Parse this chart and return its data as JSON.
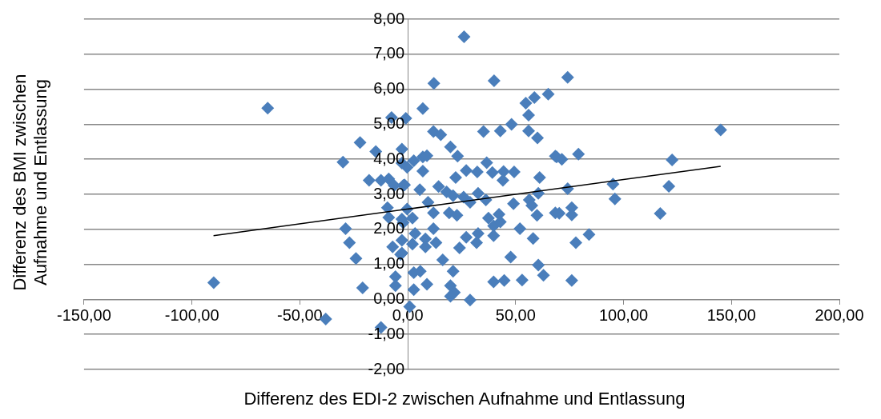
{
  "chart_data": {
    "type": "scatter",
    "xlabel": "Differenz des EDI-2 zwischen Aufnahme und Entlassung",
    "ylabel": "Differenz des BMI zwischen Aufnahme und Entlassung",
    "xlim": [
      -150,
      200
    ],
    "ylim": [
      -2,
      8
    ],
    "xticks": [
      {
        "value": -150,
        "label": "-150,00"
      },
      {
        "value": -100,
        "label": "-100,00"
      },
      {
        "value": -50,
        "label": "-50,00"
      },
      {
        "value": 0,
        "label": "0,00"
      },
      {
        "value": 50,
        "label": "50,00"
      },
      {
        "value": 100,
        "label": "100,00"
      },
      {
        "value": 150,
        "label": "150,00"
      },
      {
        "value": 200,
        "label": "200,00"
      }
    ],
    "yticks": [
      {
        "value": -2,
        "label": "-2,00"
      },
      {
        "value": -1,
        "label": "-1,00"
      },
      {
        "value": 0,
        "label": "0,00"
      },
      {
        "value": 1,
        "label": "1,00"
      },
      {
        "value": 2,
        "label": "2,00"
      },
      {
        "value": 3,
        "label": "3,00"
      },
      {
        "value": 4,
        "label": "4,00"
      },
      {
        "value": 5,
        "label": "5,00"
      },
      {
        "value": 6,
        "label": "6,00"
      },
      {
        "value": 7,
        "label": "7,00"
      },
      {
        "value": 8,
        "label": "8,00"
      }
    ],
    "grid": "y",
    "marker": "diamond",
    "series": [
      {
        "color": "#4a7ebb",
        "x": [
          26.1,
          12.1,
          40,
          7,
          -0.9,
          11.9,
          15.3,
          35.1,
          42.9,
          48.1,
          54.7,
          58.7,
          65.1,
          56,
          56,
          60.1,
          19.8,
          23.1,
          68.4,
          -2.7,
          2.8,
          7,
          8.9,
          -0.3,
          7,
          27.1,
          32.2,
          36.6,
          39.2,
          44.4,
          49.3,
          44.1,
          22.2,
          61.1,
          -1.5,
          5.6,
          14.3,
          18,
          21,
          25.9,
          32.6,
          28.9,
          36.2,
          49,
          56.3,
          60.5,
          57.5,
          68.4,
          9.4,
          11.9,
          -0.3,
          -2.7,
          2.2,
          19.2,
          22.8,
          37.4,
          42.3,
          39.8,
          42.9,
          59.9,
          3.4,
          8.2,
          11.9,
          13.1,
          2.2,
          8.2,
          -2.7,
          -2.7,
          27.1,
          32.6,
          31.9,
          24,
          39.8,
          52,
          58.1,
          16.2,
          21,
          47.7,
          60.5,
          62.9,
          2.8,
          5.8,
          2.8,
          8.9,
          19.8,
          21.6,
          19.8,
          28.9,
          39.8,
          44.7,
          53,
          0.9,
          74.1,
          122.5,
          121,
          117,
          145,
          69,
          71.4,
          79.1,
          74.1,
          95.1,
          96,
          70.2,
          76,
          76,
          77.9,
          84,
          76,
          -7.5,
          -22.1,
          -30,
          -14.8,
          -17.9,
          -12.4,
          -8.8,
          -6.3,
          -2.1,
          -2.7,
          -9.4,
          -8.8,
          -2.1,
          -28.8,
          -27,
          -24,
          -7,
          -3.3,
          -5.7,
          -5.7,
          -20.9,
          -89.9,
          -64.9,
          -38,
          -12.4
        ],
        "values": [
          7.5,
          6.17,
          6.24,
          5.45,
          5.17,
          4.79,
          4.7,
          4.79,
          4.81,
          5,
          5.6,
          5.76,
          5.86,
          5.26,
          4.81,
          4.61,
          4.35,
          4.09,
          4.09,
          4.29,
          3.96,
          4.07,
          4.1,
          3.77,
          3.66,
          3.68,
          3.64,
          3.9,
          3.62,
          3.65,
          3.64,
          3.4,
          3.48,
          3.48,
          3.27,
          3.13,
          3.22,
          3.07,
          2.96,
          2.92,
          3.03,
          2.77,
          2.84,
          2.73,
          2.84,
          3.03,
          2.68,
          2.47,
          2.77,
          2.47,
          2.58,
          2.29,
          2.32,
          2.47,
          2.4,
          2.32,
          2.43,
          2.1,
          2.21,
          2.4,
          1.88,
          1.73,
          2.02,
          1.62,
          1.58,
          1.5,
          1.69,
          1.32,
          1.77,
          1.88,
          1.62,
          1.47,
          1.82,
          2.02,
          1.74,
          1.13,
          0.8,
          1.21,
          0.98,
          0.69,
          0.76,
          0.8,
          0.28,
          0.43,
          0.39,
          0.2,
          0.09,
          -0.02,
          0.5,
          0.54,
          0.55,
          -0.21,
          6.34,
          3.98,
          3.23,
          2.45,
          4.84,
          4.07,
          4,
          4.15,
          3.16,
          3.29,
          2.87,
          2.46,
          2.62,
          2.41,
          1.62,
          1.85,
          0.54,
          5.19,
          4.48,
          3.92,
          4.22,
          3.4,
          3.4,
          3.44,
          3.25,
          3.25,
          3.89,
          2.62,
          2.34,
          2.19,
          2.02,
          1.62,
          1.17,
          1.5,
          1.28,
          0.65,
          0.39,
          0.33,
          0.48,
          5.46,
          -0.56,
          -0.8
        ]
      },
      {
        "type": "line",
        "color": "#000000",
        "marker": "none",
        "x": [
          -90,
          145
        ],
        "values": [
          1.82,
          3.8
        ]
      }
    ]
  }
}
